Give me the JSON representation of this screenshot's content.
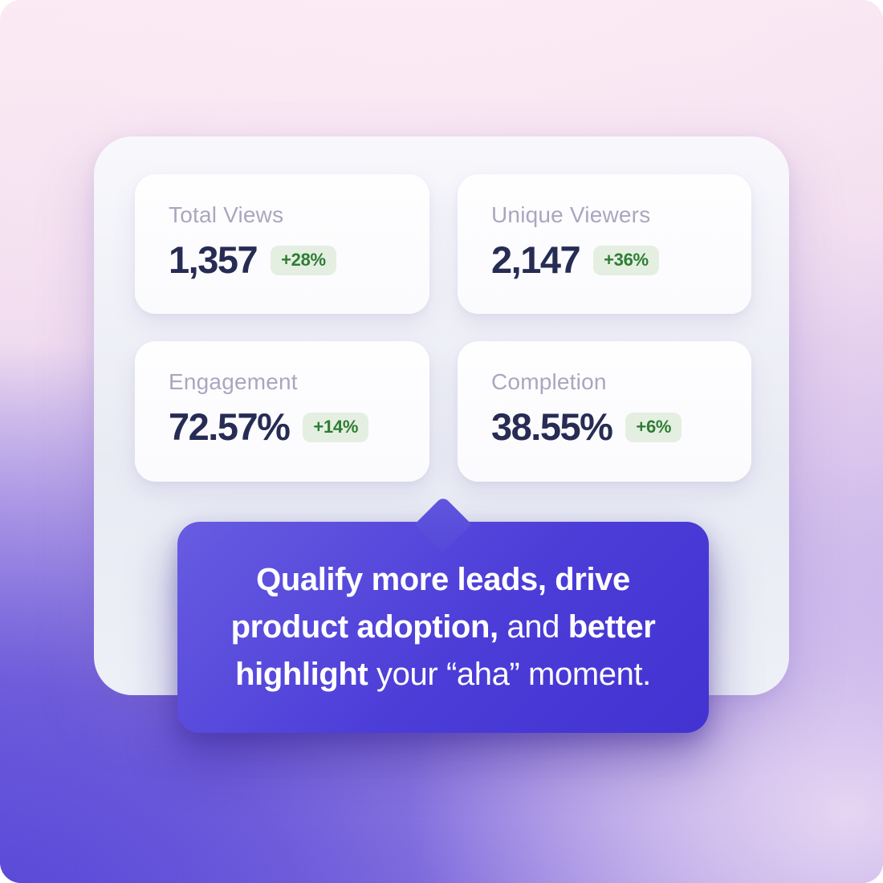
{
  "colors": {
    "accent_purple": "#4C3DD8",
    "value_navy": "#272C54",
    "label_gray": "#A9A7BF",
    "badge_text_green": "#2E7D32",
    "badge_bg_green": "#E4EFE2",
    "bg_top_pink": "#FAE7F2",
    "bg_bottom_purple": "#4C3DD5"
  },
  "stats": [
    {
      "label": "Total Views",
      "value": "1,357",
      "delta": "+28%"
    },
    {
      "label": "Unique Viewers",
      "value": "2,147",
      "delta": "+36%"
    },
    {
      "label": "Engagement",
      "value": "72.57%",
      "delta": "+14%"
    },
    {
      "label": "Completion",
      "value": "38.55%",
      "delta": "+6%"
    }
  ],
  "tooltip": {
    "lines": [
      [
        {
          "text": "Qualify more leads, drive",
          "bold": true
        }
      ],
      [
        {
          "text": "product adoption,",
          "bold": true
        },
        {
          "text": " and ",
          "bold": false
        },
        {
          "text": "better",
          "bold": true
        }
      ],
      [
        {
          "text": "highlight",
          "bold": true
        },
        {
          "text": " your “aha” moment.",
          "bold": false
        }
      ]
    ]
  }
}
